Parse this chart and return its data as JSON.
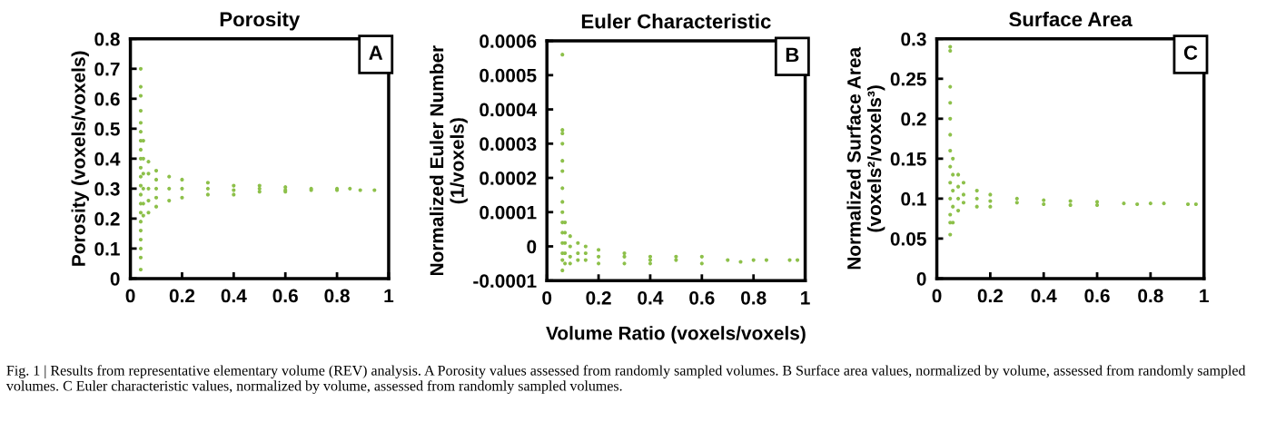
{
  "chart_data": [
    {
      "type": "scatter",
      "title": "Porosity",
      "ylabel": "Porosity (voxels/voxels)",
      "annotations": [
        "A",
        "Fig. 1 | Results from representative elementary volume (REV) analysis. A Porosity values assessed from randomly sampled volumes. B Surface area values, normalized by volume, assessed from randomly sampled volumes. C Euler characteristic values, normalized by volume, assessed from randomly sampled volumes."
      ],
      "xlim": [
        0,
        1
      ],
      "xticks": [
        0,
        0.2,
        0.4,
        0.6,
        0.8,
        1
      ],
      "ylim": [
        0,
        0.8
      ],
      "yticks": [
        0,
        0.1,
        0.2,
        0.3,
        0.4,
        0.5,
        0.6,
        0.7,
        0.8
      ],
      "grid": false,
      "marker": "circle",
      "series": [
        {
          "color": "#8dc04a",
          "x": [
            0.04,
            0.04,
            0.04,
            0.04,
            0.04,
            0.04,
            0.04,
            0.04,
            0.04,
            0.04,
            0.04,
            0.04,
            0.04,
            0.04,
            0.04,
            0.04,
            0.04,
            0.04,
            0.04,
            0.04,
            0.04,
            0.05,
            0.05,
            0.05,
            0.05,
            0.05,
            0.05,
            0.07,
            0.07,
            0.07,
            0.07,
            0.07,
            0.1,
            0.1,
            0.1,
            0.1,
            0.1,
            0.15,
            0.15,
            0.15,
            0.2,
            0.2,
            0.2,
            0.3,
            0.3,
            0.3,
            0.4,
            0.4,
            0.4,
            0.5,
            0.5,
            0.5,
            0.6,
            0.6,
            0.6,
            0.7,
            0.7,
            0.8,
            0.8,
            0.85,
            0.89,
            0.945
          ],
          "values": [
            0.7,
            0.64,
            0.61,
            0.56,
            0.52,
            0.49,
            0.46,
            0.43,
            0.4,
            0.37,
            0.34,
            0.31,
            0.28,
            0.25,
            0.22,
            0.19,
            0.16,
            0.13,
            0.1,
            0.07,
            0.03,
            0.46,
            0.4,
            0.35,
            0.3,
            0.25,
            0.21,
            0.39,
            0.35,
            0.3,
            0.26,
            0.22,
            0.36,
            0.33,
            0.3,
            0.27,
            0.24,
            0.34,
            0.3,
            0.26,
            0.33,
            0.3,
            0.27,
            0.32,
            0.3,
            0.28,
            0.31,
            0.295,
            0.28,
            0.31,
            0.3,
            0.29,
            0.305,
            0.295,
            0.29,
            0.3,
            0.295,
            0.3,
            0.295,
            0.3,
            0.295,
            0.295
          ]
        }
      ]
    },
    {
      "type": "scatter",
      "title": "Euler Characteristic",
      "xlabel": "Volume Ratio (voxels/voxels)",
      "ylabel": "Normalized Euler Number\n(1/voxels)",
      "annotations": [
        "B"
      ],
      "xlim": [
        0,
        1
      ],
      "xticks": [
        0,
        0.2,
        0.4,
        0.6,
        0.8,
        1
      ],
      "ylim": [
        -0.0001,
        0.0006
      ],
      "yticks": [
        -0.0001,
        0,
        0.0001,
        0.0002,
        0.0003,
        0.0004,
        0.0005,
        0.0006
      ],
      "grid": false,
      "marker": "circle",
      "series": [
        {
          "color": "#8dc04a",
          "x": [
            0.06,
            0.06,
            0.06,
            0.06,
            0.06,
            0.06,
            0.06,
            0.06,
            0.06,
            0.06,
            0.06,
            0.06,
            0.06,
            0.06,
            0.06,
            0.07,
            0.07,
            0.07,
            0.07,
            0.07,
            0.09,
            0.09,
            0.09,
            0.09,
            0.12,
            0.12,
            0.12,
            0.15,
            0.15,
            0.15,
            0.2,
            0.2,
            0.2,
            0.3,
            0.3,
            0.3,
            0.4,
            0.4,
            0.4,
            0.5,
            0.5,
            0.6,
            0.6,
            0.7,
            0.75,
            0.8,
            0.85,
            0.94,
            0.97
          ],
          "values": [
            0.00056,
            0.00034,
            0.00033,
            0.0003,
            0.00025,
            0.00022,
            0.00017,
            0.00013,
            0.0001,
            7e-05,
            4e-05,
            1e-05,
            -2e-05,
            -4e-05,
            -7e-05,
            7e-05,
            4e-05,
            1e-05,
            -2e-05,
            -5e-05,
            3e-05,
            0,
            -3e-05,
            -5e-05,
            1e-05,
            -2e-05,
            -4e-05,
            0,
            -2e-05,
            -4e-05,
            -1e-05,
            -3e-05,
            -5e-05,
            -2e-05,
            -3e-05,
            -5e-05,
            -3e-05,
            -4e-05,
            -5e-05,
            -3e-05,
            -4e-05,
            -3e-05,
            -5e-05,
            -4e-05,
            -4.5e-05,
            -4e-05,
            -4e-05,
            -4e-05,
            -4e-05
          ]
        }
      ]
    },
    {
      "type": "scatter",
      "title": "Surface Area",
      "ylabel": "Normalized Surface Area\n(voxels²/voxels³)",
      "annotations": [
        "C"
      ],
      "xlim": [
        0,
        1
      ],
      "xticks": [
        0,
        0.2,
        0.4,
        0.6,
        0.8,
        1
      ],
      "ylim": [
        0,
        0.3
      ],
      "yticks": [
        0,
        0.05,
        0.1,
        0.15,
        0.2,
        0.25,
        0.3
      ],
      "grid": false,
      "marker": "circle",
      "series": [
        {
          "color": "#8dc04a",
          "x": [
            0.05,
            0.05,
            0.05,
            0.05,
            0.05,
            0.05,
            0.05,
            0.05,
            0.05,
            0.05,
            0.05,
            0.05,
            0.05,
            0.06,
            0.06,
            0.06,
            0.06,
            0.06,
            0.08,
            0.08,
            0.08,
            0.08,
            0.1,
            0.1,
            0.1,
            0.15,
            0.15,
            0.15,
            0.2,
            0.2,
            0.2,
            0.3,
            0.3,
            0.4,
            0.4,
            0.5,
            0.5,
            0.6,
            0.6,
            0.7,
            0.75,
            0.8,
            0.85,
            0.94,
            0.97
          ],
          "values": [
            0.29,
            0.285,
            0.24,
            0.22,
            0.2,
            0.18,
            0.16,
            0.14,
            0.12,
            0.1,
            0.08,
            0.07,
            0.055,
            0.15,
            0.13,
            0.11,
            0.09,
            0.07,
            0.13,
            0.115,
            0.1,
            0.085,
            0.12,
            0.105,
            0.095,
            0.11,
            0.1,
            0.09,
            0.105,
            0.097,
            0.09,
            0.1,
            0.095,
            0.098,
            0.093,
            0.097,
            0.092,
            0.096,
            0.092,
            0.094,
            0.093,
            0.094,
            0.094,
            0.093,
            0.093
          ]
        }
      ]
    }
  ]
}
